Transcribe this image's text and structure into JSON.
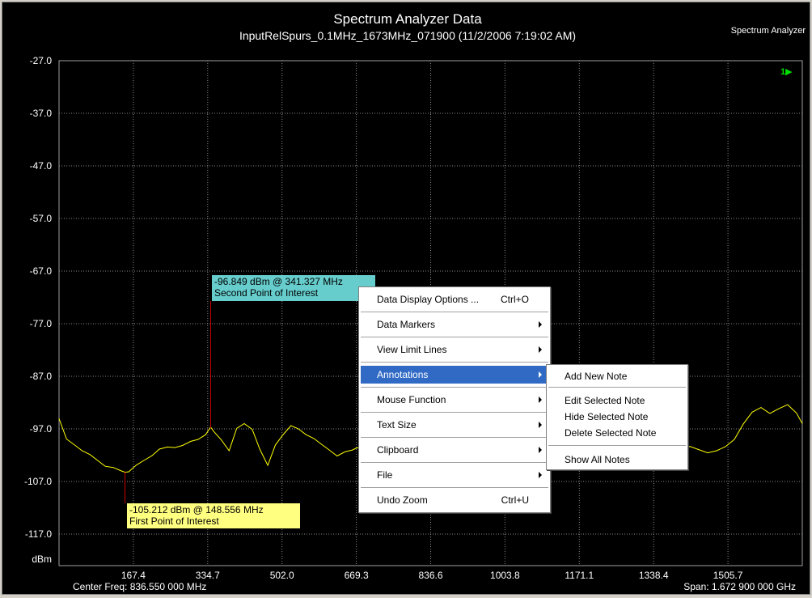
{
  "window": {
    "title": "Spectrum Analyzer Data",
    "subtitle": "InputRelSpurs_0.1MHz_1673MHz_071900  (11/2/2006  7:19:02  AM)",
    "corner_label": "Spectrum Analyzer",
    "trace_indicator": "1▶",
    "center_freq": "Center Freq: 836.550 000 MHz",
    "span": "Span: 1.672 900 000 GHz",
    "y_unit": "dBm"
  },
  "chart_data": {
    "type": "line",
    "title": "Spectrum Analyzer Data",
    "subtitle": "InputRelSpurs_0.1MHz_1673MHz_071900  (11/2/2006  7:19:02  AM)",
    "xlabel": "",
    "ylabel": "dBm",
    "xlim": [
      0.1,
      1673.0
    ],
    "ylim": [
      -123.0,
      -27.0
    ],
    "y_ticks": [
      "-27.0",
      "-37.0",
      "-47.0",
      "-57.0",
      "-67.0",
      "-77.0",
      "-87.0",
      "-97.0",
      "-107.0",
      "-117.0"
    ],
    "x_ticks": [
      "167.4",
      "334.7",
      "502.0",
      "669.3",
      "836.6",
      "1003.8",
      "1171.1",
      "1338.4",
      "1505.7"
    ],
    "grid": true,
    "series": [
      {
        "color": "#ffff00",
        "x": [
          0,
          17,
          35,
          52,
          70,
          87,
          104,
          122,
          139,
          148.6,
          157,
          174,
          191,
          209,
          226,
          244,
          261,
          278,
          296,
          313,
          330,
          341.3,
          348,
          365,
          383,
          400,
          417,
          435,
          452,
          470,
          487,
          504,
          522,
          539,
          556,
          574,
          591,
          609,
          626,
          643,
          661,
          670,
          1140,
          1160,
          1180,
          1200,
          1220,
          1240,
          1260,
          1280,
          1300,
          1320,
          1340,
          1360,
          1380,
          1400,
          1420,
          1440,
          1460,
          1480,
          1500,
          1520,
          1540,
          1560,
          1580,
          1600,
          1620,
          1640,
          1660,
          1673
        ],
        "y": [
          -95,
          -99,
          -100,
          -101,
          -102,
          -103,
          -104,
          -104.5,
          -105,
          -105.2,
          -105,
          -104,
          -103,
          -102,
          -101,
          -100.5,
          -100.5,
          -100,
          -99.5,
          -99,
          -98,
          -96.8,
          -97.5,
          -99,
          -101,
          -97,
          -96,
          -97,
          -101,
          -104,
          -100,
          -98,
          -96.5,
          -97,
          -98,
          -99,
          -100,
          -101,
          -102,
          -101.5,
          -101,
          -100.5,
          -99,
          -99.5,
          -100,
          -100,
          -100.5,
          -101,
          -100.5,
          -101,
          -101,
          -101.5,
          -101.5,
          -101,
          -100.5,
          -101,
          -100.5,
          -101,
          -101.5,
          -101,
          -100.5,
          -99,
          -96,
          -94,
          -93,
          -94,
          -93,
          -92.5,
          -94,
          -96
        ]
      }
    ],
    "annotations": [
      {
        "line1": "-105.212 dBm @ 148.556 MHz",
        "line2": "First Point of Interest",
        "x": 148.556,
        "y": -105.212,
        "color": "#ffff80"
      },
      {
        "line1": "-96.849 dBm @ 341.327 MHz",
        "line2": "Second Point of Interest",
        "x": 341.327,
        "y": -96.849,
        "color": "#66cccc"
      }
    ]
  },
  "context_menu": {
    "items": [
      {
        "label": "Data Display Options ...",
        "shortcut": "Ctrl+O",
        "submenu": false,
        "selected": false,
        "sep_after": true
      },
      {
        "label": "Data Markers",
        "shortcut": "",
        "submenu": true,
        "selected": false,
        "sep_after": true
      },
      {
        "label": "View Limit Lines",
        "shortcut": "",
        "submenu": true,
        "selected": false,
        "sep_after": true
      },
      {
        "label": "Annotations",
        "shortcut": "",
        "submenu": true,
        "selected": true,
        "sep_after": true
      },
      {
        "label": "Mouse Function",
        "shortcut": "",
        "submenu": true,
        "selected": false,
        "sep_after": true
      },
      {
        "label": "Text Size",
        "shortcut": "",
        "submenu": true,
        "selected": false,
        "sep_after": true
      },
      {
        "label": "Clipboard",
        "shortcut": "",
        "submenu": true,
        "selected": false,
        "sep_after": true
      },
      {
        "label": "File",
        "shortcut": "",
        "submenu": true,
        "selected": false,
        "sep_after": true
      },
      {
        "label": "Undo Zoom",
        "shortcut": "Ctrl+U",
        "submenu": false,
        "selected": false,
        "sep_after": false
      }
    ]
  },
  "annotations_submenu": {
    "items": [
      {
        "label": "Add New Note",
        "sep_after": true
      },
      {
        "label": "Edit Selected Note",
        "sep_after": false
      },
      {
        "label": "Hide Selected Note",
        "sep_after": false
      },
      {
        "label": "Delete Selected  Note",
        "sep_after": true
      },
      {
        "label": "Show All Notes",
        "sep_after": false
      }
    ]
  }
}
